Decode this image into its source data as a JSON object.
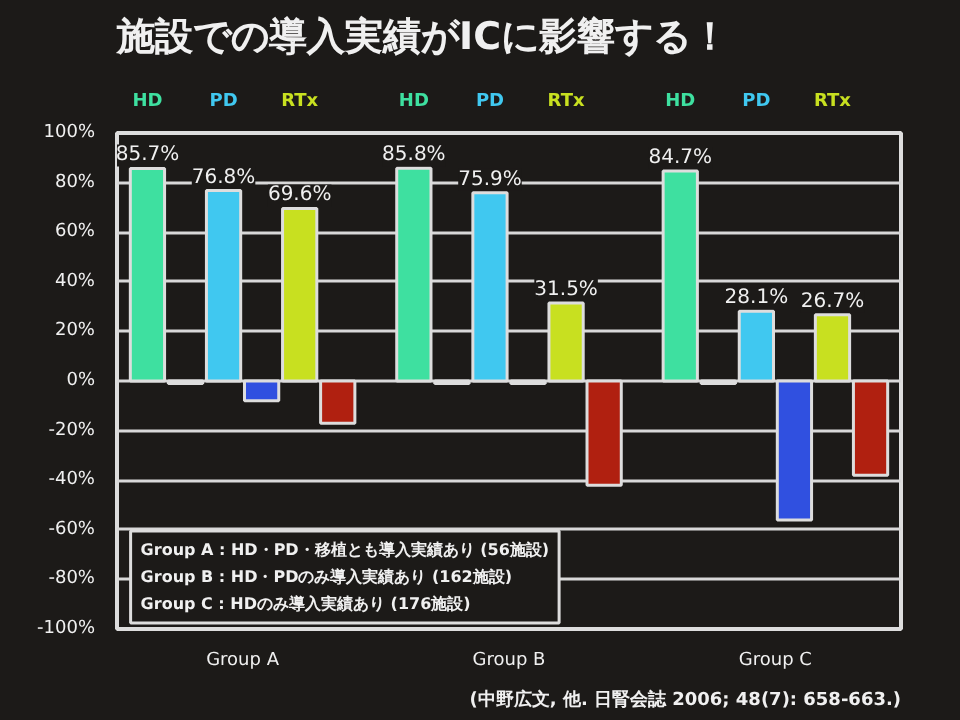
{
  "chart_data": {
    "type": "bar",
    "title": "施設での導入実績がICに影響する！",
    "categories": [
      "Group A",
      "Group B",
      "Group C"
    ],
    "series": [
      {
        "name": "HD",
        "color": "#3ee0a0",
        "values": [
          85.7,
          85.8,
          84.7
        ],
        "value_labels": [
          "85.7%",
          "85.8%",
          "84.7%"
        ]
      },
      {
        "color": "#2a2826",
        "values": [
          -1,
          -1,
          -1
        ]
      },
      {
        "name": "PD",
        "color": "#40c8f0",
        "values": [
          76.8,
          75.9,
          28.1
        ],
        "value_labels": [
          "76.8%",
          "75.9%",
          "28.1%"
        ]
      },
      {
        "color": "#3050e0",
        "values": [
          -8,
          -1,
          -56
        ]
      },
      {
        "name": "RTx",
        "color": "#c8e020",
        "values": [
          69.6,
          31.5,
          26.7
        ],
        "value_labels": [
          "69.6%",
          "31.5%",
          "26.7%"
        ]
      },
      {
        "color": "#b02010",
        "values": [
          -17,
          -42,
          -38
        ]
      }
    ],
    "ylim": [
      -100,
      100
    ],
    "yticks": [
      {
        "value": -100,
        "label": "-100%"
      },
      {
        "value": -80,
        "label": "-80%"
      },
      {
        "value": -60,
        "label": "-60%"
      },
      {
        "value": -40,
        "label": "-40%"
      },
      {
        "value": -20,
        "label": "-20%"
      },
      {
        "value": 0,
        "label": "0%"
      },
      {
        "value": 20,
        "label": "20%"
      },
      {
        "value": 40,
        "label": "40%"
      },
      {
        "value": 60,
        "label": "60%"
      },
      {
        "value": 80,
        "label": "80%"
      },
      {
        "value": 100,
        "label": "100%"
      }
    ],
    "grid": "y",
    "annotations": [
      "Group A : HD・PD・移植とも導入実績あり (56施設)",
      "Group B : HD・PDのみ導入実績あり (162施設)",
      "Group C : HDのみ導入実績あり (176施設)",
      "(中野広文, 他. 日腎会誌 2006; 48(7): 658-663.)"
    ]
  }
}
